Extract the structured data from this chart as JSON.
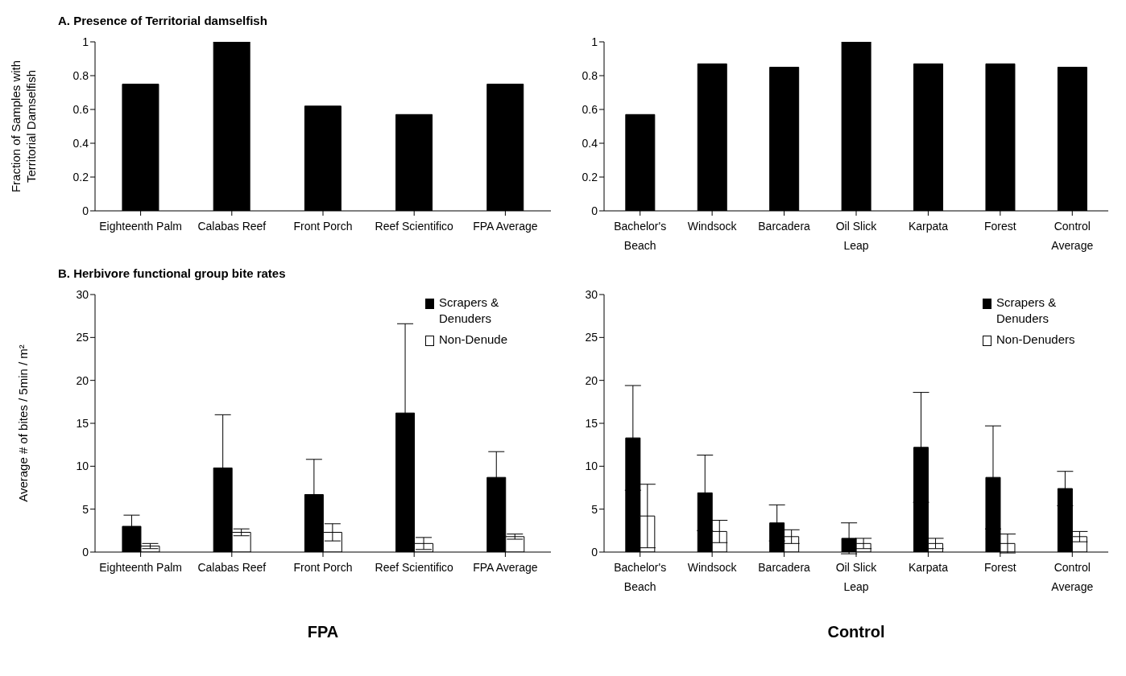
{
  "chart_data": [
    {
      "type": "bar",
      "title": "A. Presence of Territorial damselfish",
      "ylabel": "Fraction of Samples with Territorial Damselfish",
      "categories": [
        "Eighteenth Palm",
        "Calabas Reef",
        "Front Porch",
        "Reef Scientifico",
        "FPA Average"
      ],
      "values": [
        0.75,
        1,
        0.62,
        0.57,
        0.75
      ],
      "color": "#000000",
      "ylim": [
        0,
        1
      ],
      "yticks": [
        0,
        0.2,
        0.4,
        0.6,
        0.8,
        1
      ],
      "grid": false,
      "legend": false
    },
    {
      "type": "bar",
      "categories": [
        "Bachelor's Beach",
        "Windsock",
        "Barcadera",
        "Oil Slick Leap",
        "Karpata",
        "Forest",
        "Control Average"
      ],
      "values": [
        0.57,
        0.87,
        0.85,
        1,
        0.87,
        0.87,
        0.85
      ],
      "color": "#000000",
      "ylim": [
        0,
        1
      ],
      "yticks": [
        0,
        0.2,
        0.4,
        0.6,
        0.8,
        1
      ],
      "grid": false,
      "legend": false
    },
    {
      "type": "bar",
      "title": "B. Herbivore functional group bite rates",
      "ylabel": "Average # of bites / 5min / m²",
      "xlabel": "FPA",
      "categories": [
        "Eighteenth Palm",
        "Calabas Reef",
        "Front Porch",
        "Reef Scientifico",
        "FPA Average"
      ],
      "series": [
        {
          "name": "Scrapers & Denuders",
          "color": "#000000",
          "values": [
            3,
            9.8,
            6.7,
            16.2,
            8.7
          ],
          "errors": [
            1.3,
            6.2,
            4.1,
            10.4,
            3
          ]
        },
        {
          "name": "Non-Denude",
          "color": "#ffffff",
          "values": [
            0.7,
            2.3,
            2.3,
            1,
            1.8
          ],
          "errors": [
            0.3,
            0.4,
            1,
            0.7,
            0.3
          ]
        }
      ],
      "ylim": [
        0,
        30
      ],
      "yticks": [
        0,
        5,
        10,
        15,
        20,
        25,
        30
      ],
      "grid": false,
      "legend": "top right"
    },
    {
      "type": "bar",
      "xlabel": "Control",
      "categories": [
        "Bachelor's Beach",
        "Windsock",
        "Barcadera",
        "Oil Slick Leap",
        "Karpata",
        "Forest",
        "Control Average"
      ],
      "series": [
        {
          "name": "Scrapers & Denuders",
          "color": "#000000",
          "values": [
            13.3,
            6.9,
            3.4,
            1.6,
            12.2,
            8.7,
            7.4
          ],
          "errors": [
            6.1,
            4.4,
            2.1,
            1.8,
            6.4,
            6,
            2
          ]
        },
        {
          "name": "Non-Denuders",
          "color": "#ffffff",
          "values": [
            4.2,
            2.4,
            1.8,
            1,
            1,
            1,
            1.8
          ],
          "errors": [
            3.7,
            1.3,
            0.8,
            0.6,
            0.6,
            1.1,
            0.6
          ]
        }
      ],
      "ylim": [
        0,
        30
      ],
      "yticks": [
        0,
        5,
        10,
        15,
        20,
        25,
        30
      ],
      "grid": false,
      "legend": "top right"
    }
  ]
}
